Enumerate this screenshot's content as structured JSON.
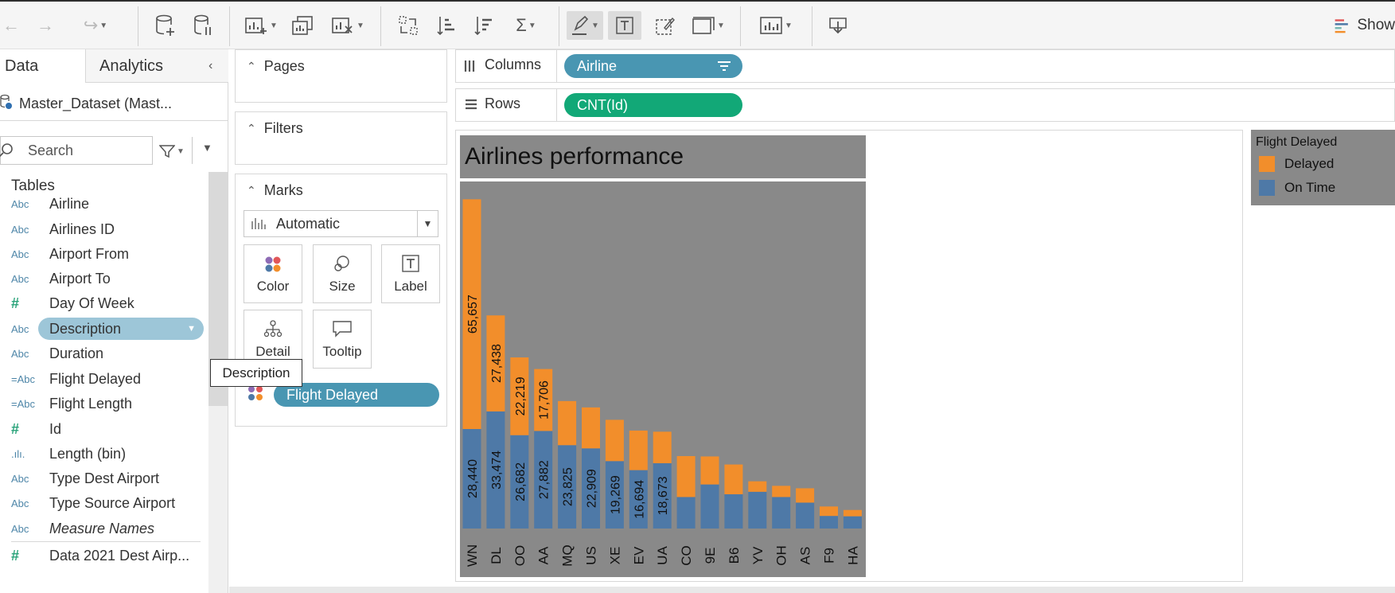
{
  "toolbar": {
    "show_me_label": "Show"
  },
  "data_pane": {
    "tab_data": "Data",
    "tab_analytics": "Analytics",
    "datasource": "Master_Dataset (Mast...",
    "search_placeholder": "Search",
    "tables_heading": "Tables",
    "fields": [
      {
        "type": "Abc",
        "name": "Airline"
      },
      {
        "type": "Abc",
        "name": "Airlines ID"
      },
      {
        "type": "Abc",
        "name": "Airport From"
      },
      {
        "type": "Abc",
        "name": "Airport To"
      },
      {
        "type": "#",
        "name": "Day Of Week"
      },
      {
        "type": "Abc",
        "name": "Description"
      },
      {
        "type": "Abc",
        "name": "Duration"
      },
      {
        "type": "=Abc",
        "name": "Flight Delayed"
      },
      {
        "type": "=Abc",
        "name": "Flight Length"
      },
      {
        "type": "#",
        "name": "Id"
      },
      {
        "type": ".ılı.",
        "name": "Length (bin)"
      },
      {
        "type": "Abc",
        "name": "Type Dest Airport"
      },
      {
        "type": "Abc",
        "name": "Type Source Airport"
      },
      {
        "type": "Abc",
        "name": "Measure Names"
      },
      {
        "type": "#",
        "name": "Data 2021 Dest Airp..."
      }
    ],
    "tooltip": "Description"
  },
  "cards": {
    "pages": "Pages",
    "filters": "Filters",
    "marks": "Marks",
    "mark_type": "Automatic",
    "buttons": {
      "color": "Color",
      "size": "Size",
      "label": "Label",
      "detail": "Detail",
      "tooltip": "Tooltip"
    },
    "color_pill": "Flight Delayed"
  },
  "shelves": {
    "columns_label": "Columns",
    "columns_pill": "Airline",
    "rows_label": "Rows",
    "rows_pill": "CNT(Id)"
  },
  "legend": {
    "title": "Flight Delayed",
    "items": [
      {
        "label": "Delayed",
        "color": "#f28e2b"
      },
      {
        "label": "On Time",
        "color": "#4e79a7"
      }
    ]
  },
  "colors": {
    "delayed": "#f28e2b",
    "on_time": "#4e79a7",
    "chart_bg": "#898989"
  },
  "chart_data": {
    "type": "bar",
    "stacked": true,
    "title": "Airlines performance",
    "categories": [
      "WN",
      "DL",
      "OO",
      "AA",
      "MQ",
      "US",
      "XE",
      "EV",
      "UA",
      "CO",
      "9E",
      "B6",
      "YV",
      "OH",
      "AS",
      "F9",
      "HA"
    ],
    "series": [
      {
        "name": "On Time",
        "values": [
          28440,
          33474,
          26682,
          27882,
          23825,
          22909,
          19269,
          16694,
          18673,
          9000,
          12600,
          9800,
          10500,
          9000,
          7400,
          3600,
          3500
        ]
      },
      {
        "name": "Delayed",
        "values": [
          65657,
          27438,
          22219,
          17706,
          12600,
          11700,
          11800,
          11300,
          9000,
          11700,
          8000,
          8500,
          3000,
          3200,
          4100,
          2700,
          1800
        ]
      }
    ],
    "labels": {
      "On Time": [
        "28,440",
        "33,474",
        "26,682",
        "27,882",
        "23,825",
        "22,909",
        "19,269",
        "16,694",
        "18,673",
        "",
        "",
        "",
        "",
        "",
        "",
        "",
        ""
      ],
      "Delayed": [
        "65,657",
        "27,438",
        "22,219",
        "17,706",
        "",
        "",
        "",
        "",
        "",
        "",
        "",
        "",
        "",
        "",
        "",
        "",
        ""
      ]
    }
  }
}
